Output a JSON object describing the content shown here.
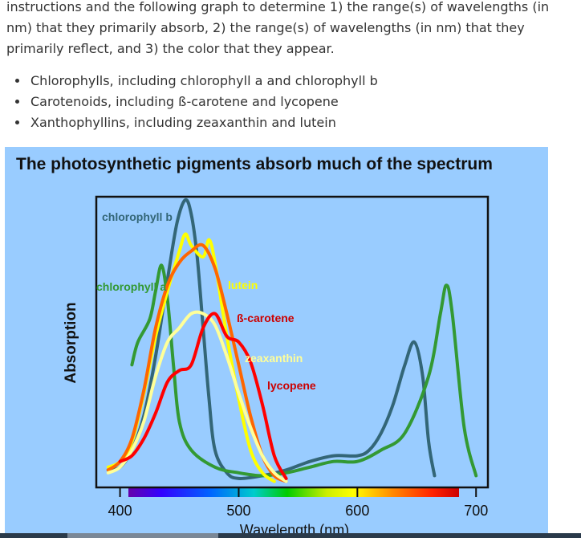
{
  "intro_text": "instructions and the following graph to determine 1) the range(s) of wavelengths (in nm) that they primarily absorb, 2) the range(s) of wavelengths (in nm) that they primarily reflect, and 3) the color that they appear.",
  "pigments": [
    "Chlorophylls, including chlorophyll a and chlorophyll b",
    "Carotenoids, including ß-carotene and lycopene",
    "Xanthophyllins, including zeaxanthin and lutein"
  ],
  "chart_data": {
    "type": "line",
    "title": "The photosynthetic pigments absorb much of the spectrum",
    "xlabel": "Wavelength (nm)",
    "ylabel": "Absorption",
    "xlim": [
      380,
      710
    ],
    "ylim": [
      0,
      1
    ],
    "x_ticks": [
      400,
      500,
      600,
      700
    ],
    "grid": false,
    "background": "#99ccff",
    "series": [
      {
        "name": "chlorophyll b",
        "color": "#336677",
        "label_color": "#336677",
        "points": [
          [
            390,
            0.05
          ],
          [
            400,
            0.06
          ],
          [
            410,
            0.12
          ],
          [
            420,
            0.24
          ],
          [
            430,
            0.45
          ],
          [
            440,
            0.72
          ],
          [
            448,
            0.92
          ],
          [
            455,
            1.0
          ],
          [
            460,
            0.95
          ],
          [
            465,
            0.8
          ],
          [
            470,
            0.55
          ],
          [
            475,
            0.3
          ],
          [
            480,
            0.12
          ],
          [
            490,
            0.04
          ],
          [
            500,
            0.02
          ],
          [
            520,
            0.03
          ],
          [
            540,
            0.05
          ],
          [
            560,
            0.08
          ],
          [
            580,
            0.1
          ],
          [
            600,
            0.1
          ],
          [
            610,
            0.12
          ],
          [
            620,
            0.18
          ],
          [
            630,
            0.28
          ],
          [
            640,
            0.42
          ],
          [
            648,
            0.5
          ],
          [
            655,
            0.38
          ],
          [
            660,
            0.15
          ],
          [
            665,
            0.03
          ]
        ]
      },
      {
        "name": "chlorophyll a",
        "color": "#339933",
        "label_color": "#339933",
        "points": [
          [
            410,
            0.42
          ],
          [
            415,
            0.5
          ],
          [
            425,
            0.58
          ],
          [
            430,
            0.68
          ],
          [
            435,
            0.77
          ],
          [
            440,
            0.65
          ],
          [
            445,
            0.42
          ],
          [
            450,
            0.22
          ],
          [
            460,
            0.12
          ],
          [
            480,
            0.06
          ],
          [
            500,
            0.04
          ],
          [
            520,
            0.03
          ],
          [
            540,
            0.04
          ],
          [
            560,
            0.06
          ],
          [
            580,
            0.08
          ],
          [
            600,
            0.08
          ],
          [
            620,
            0.12
          ],
          [
            640,
            0.18
          ],
          [
            660,
            0.38
          ],
          [
            670,
            0.6
          ],
          [
            675,
            0.7
          ],
          [
            680,
            0.6
          ],
          [
            690,
            0.2
          ],
          [
            700,
            0.03
          ]
        ]
      },
      {
        "name": "lutein",
        "color": "#ffff00",
        "label_color": "#ffff00",
        "points": [
          [
            390,
            0.06
          ],
          [
            400,
            0.08
          ],
          [
            410,
            0.15
          ],
          [
            420,
            0.32
          ],
          [
            430,
            0.52
          ],
          [
            440,
            0.68
          ],
          [
            450,
            0.82
          ],
          [
            455,
            0.88
          ],
          [
            460,
            0.84
          ],
          [
            470,
            0.8
          ],
          [
            475,
            0.86
          ],
          [
            480,
            0.78
          ],
          [
            490,
            0.52
          ],
          [
            500,
            0.3
          ],
          [
            510,
            0.12
          ],
          [
            520,
            0.04
          ],
          [
            530,
            0.01
          ]
        ]
      },
      {
        "name": "ß-carotene",
        "color": "#ff6600",
        "label_color": "#cc0000",
        "points": [
          [
            390,
            0.05
          ],
          [
            400,
            0.08
          ],
          [
            410,
            0.16
          ],
          [
            420,
            0.33
          ],
          [
            430,
            0.55
          ],
          [
            440,
            0.7
          ],
          [
            450,
            0.78
          ],
          [
            460,
            0.82
          ],
          [
            470,
            0.84
          ],
          [
            480,
            0.76
          ],
          [
            490,
            0.6
          ],
          [
            500,
            0.42
          ],
          [
            510,
            0.24
          ],
          [
            520,
            0.1
          ],
          [
            530,
            0.03
          ],
          [
            540,
            0.01
          ]
        ]
      },
      {
        "name": "zeaxanthin",
        "color": "#ffff99",
        "label_color": "#ffff99",
        "points": [
          [
            390,
            0.04
          ],
          [
            400,
            0.06
          ],
          [
            410,
            0.12
          ],
          [
            420,
            0.22
          ],
          [
            430,
            0.38
          ],
          [
            440,
            0.5
          ],
          [
            450,
            0.55
          ],
          [
            460,
            0.6
          ],
          [
            470,
            0.6
          ],
          [
            480,
            0.56
          ],
          [
            490,
            0.45
          ],
          [
            500,
            0.32
          ],
          [
            510,
            0.2
          ],
          [
            520,
            0.1
          ],
          [
            530,
            0.04
          ],
          [
            540,
            0.01
          ]
        ]
      },
      {
        "name": "lycopene",
        "color": "#ff0000",
        "label_color": "#cc0000",
        "points": [
          [
            400,
            0.08
          ],
          [
            410,
            0.1
          ],
          [
            420,
            0.16
          ],
          [
            430,
            0.25
          ],
          [
            440,
            0.36
          ],
          [
            450,
            0.4
          ],
          [
            460,
            0.42
          ],
          [
            470,
            0.55
          ],
          [
            480,
            0.6
          ],
          [
            490,
            0.52
          ],
          [
            500,
            0.5
          ],
          [
            510,
            0.43
          ],
          [
            520,
            0.28
          ],
          [
            530,
            0.1
          ],
          [
            540,
            0.02
          ]
        ]
      }
    ]
  }
}
